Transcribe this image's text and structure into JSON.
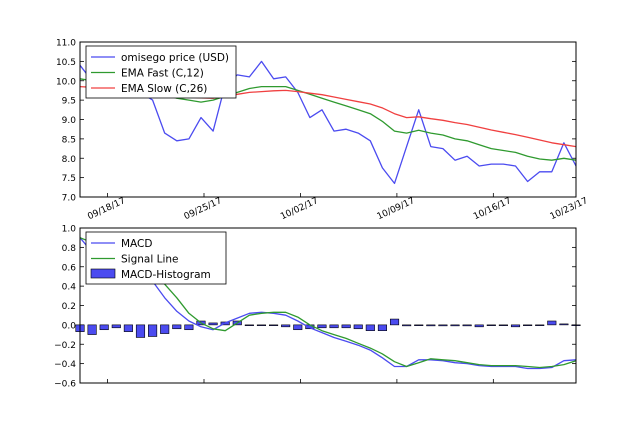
{
  "chart_data": [
    {
      "type": "line",
      "ylim": [
        7.0,
        11.0
      ],
      "yticks": [
        "11.0",
        "10.5",
        "10.0",
        "9.5",
        "9.0",
        "8.5",
        "8.0",
        "7.5",
        "7.0"
      ],
      "xlim": [
        0,
        36
      ],
      "xticks": [
        {
          "x": 2,
          "label": "09/18/17"
        },
        {
          "x": 9,
          "label": "09/25/17"
        },
        {
          "x": 16,
          "label": "10/02/17"
        },
        {
          "x": 23,
          "label": "10/09/17"
        },
        {
          "x": 30,
          "label": "10/16/17"
        },
        {
          "x": 37,
          "label": "10/23/17"
        }
      ],
      "legend": "top-left",
      "series": [
        {
          "name": "omisego price (USD)",
          "color": "#4b4bf0",
          "values": [
            10.4,
            10.0,
            9.9,
            9.95,
            9.9,
            9.7,
            9.5,
            8.65,
            8.45,
            8.5,
            9.05,
            8.7,
            9.9,
            10.15,
            10.1,
            10.5,
            10.05,
            10.1,
            9.7,
            9.05,
            9.25,
            8.7,
            8.75,
            8.65,
            8.45,
            7.75,
            7.35,
            8.3,
            9.25,
            8.3,
            8.25,
            7.95,
            8.05,
            7.8,
            7.85,
            7.85,
            7.8,
            7.4,
            7.65,
            7.65,
            8.4,
            7.8
          ]
        },
        {
          "name": "EMA Fast (C,12)",
          "color": "#2f9a2f",
          "values": [
            10.05,
            10.0,
            9.95,
            9.9,
            9.85,
            9.8,
            9.75,
            9.65,
            9.55,
            9.5,
            9.45,
            9.5,
            9.6,
            9.7,
            9.8,
            9.85,
            9.85,
            9.85,
            9.75,
            9.65,
            9.55,
            9.45,
            9.35,
            9.25,
            9.15,
            8.95,
            8.7,
            8.65,
            8.72,
            8.65,
            8.6,
            8.5,
            8.45,
            8.35,
            8.25,
            8.2,
            8.15,
            8.05,
            7.98,
            7.95,
            8.0,
            7.95
          ]
        },
        {
          "name": "EMA Slow (C,26)",
          "color": "#f04040",
          "values": [
            9.85,
            9.83,
            9.8,
            9.78,
            9.75,
            9.72,
            9.7,
            9.66,
            9.62,
            9.58,
            9.56,
            9.55,
            9.6,
            9.65,
            9.7,
            9.72,
            9.74,
            9.75,
            9.72,
            9.68,
            9.64,
            9.58,
            9.52,
            9.46,
            9.4,
            9.3,
            9.15,
            9.05,
            9.07,
            9.02,
            8.98,
            8.92,
            8.87,
            8.8,
            8.73,
            8.67,
            8.61,
            8.54,
            8.47,
            8.4,
            8.35,
            8.3
          ]
        }
      ]
    },
    {
      "type": "bar",
      "ylim": [
        -0.6,
        1.0
      ],
      "yticks": [
        "1.0",
        "0.8",
        "0.6",
        "0.4",
        "0.2",
        "0.0",
        "−0.2",
        "−0.4",
        "−0.6"
      ],
      "xlim": [
        0,
        36
      ],
      "legend": "top-left",
      "series": [
        {
          "name": "MACD",
          "color": "#4b4bf0",
          "values": [
            0.9,
            0.75,
            0.62,
            0.55,
            0.52,
            0.5,
            0.45,
            0.28,
            0.14,
            0.04,
            -0.02,
            -0.05,
            0.02,
            0.07,
            0.12,
            0.13,
            0.12,
            0.1,
            0.04,
            -0.03,
            -0.08,
            -0.13,
            -0.17,
            -0.21,
            -0.26,
            -0.34,
            -0.43,
            -0.43,
            -0.36,
            -0.36,
            -0.37,
            -0.39,
            -0.4,
            -0.42,
            -0.43,
            -0.43,
            -0.43,
            -0.45,
            -0.45,
            -0.44,
            -0.37,
            -0.36
          ]
        },
        {
          "name": "Signal Line",
          "color": "#2f9a2f",
          "values": [
            0.9,
            0.85,
            0.8,
            0.72,
            0.65,
            0.6,
            0.55,
            0.42,
            0.28,
            0.12,
            0.02,
            -0.04,
            -0.06,
            0.02,
            0.1,
            0.12,
            0.13,
            0.13,
            0.08,
            0.0,
            -0.06,
            -0.1,
            -0.14,
            -0.19,
            -0.24,
            -0.3,
            -0.38,
            -0.43,
            -0.39,
            -0.35,
            -0.36,
            -0.37,
            -0.39,
            -0.41,
            -0.42,
            -0.42,
            -0.42,
            -0.43,
            -0.44,
            -0.43,
            -0.41,
            -0.37
          ]
        },
        {
          "name": "MACD-Histogram",
          "color": "#4b4bf0",
          "values": [
            -0.07,
            -0.1,
            -0.05,
            -0.03,
            -0.07,
            -0.13,
            -0.12,
            -0.09,
            -0.04,
            -0.05,
            0.04,
            0.02,
            0.03,
            0.04,
            0.0,
            0.0,
            0.0,
            -0.02,
            -0.05,
            -0.04,
            -0.03,
            -0.03,
            -0.03,
            -0.04,
            -0.06,
            -0.06,
            0.06,
            -0.01,
            0.0,
            -0.01,
            -0.01,
            -0.01,
            -0.01,
            -0.02,
            0.0,
            0.0,
            -0.02,
            0.0,
            0.0,
            0.04,
            0.01,
            0.0
          ]
        }
      ]
    }
  ]
}
